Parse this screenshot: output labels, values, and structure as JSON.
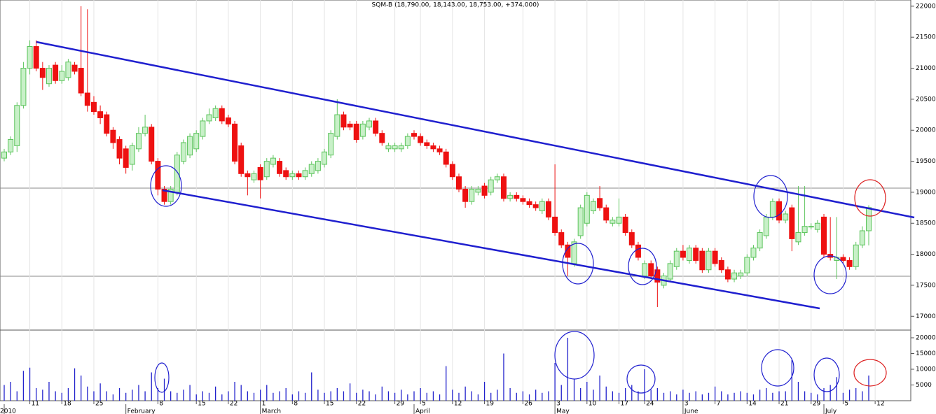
{
  "chart_data": {
    "type": "candlestick",
    "title": "SQM-B (18,790.00, 18,143.00, 18,753.00, +374.000)",
    "candles": [
      [
        19550,
        19700,
        19500,
        19650
      ],
      [
        19650,
        19900,
        19600,
        19850
      ],
      [
        19750,
        20450,
        19650,
        20400
      ],
      [
        20400,
        21100,
        20350,
        21000
      ],
      [
        21000,
        21450,
        20900,
        21350
      ],
      [
        21350,
        21450,
        20950,
        21000
      ],
      [
        21000,
        21100,
        20650,
        20850
      ],
      [
        20750,
        21050,
        20700,
        21000
      ],
      [
        21050,
        21100,
        20750,
        20800
      ],
      [
        20800,
        21050,
        20750,
        20950
      ],
      [
        20850,
        21150,
        20800,
        21100
      ],
      [
        21050,
        21100,
        20900,
        20950
      ],
      [
        21000,
        22000,
        20550,
        20600
      ],
      [
        20600,
        21950,
        20300,
        20400
      ],
      [
        20450,
        20550,
        20250,
        20300
      ],
      [
        20300,
        20400,
        20100,
        20200
      ],
      [
        20250,
        20300,
        19900,
        19950
      ],
      [
        20000,
        20050,
        19700,
        19800
      ],
      [
        19850,
        19900,
        19450,
        19550
      ],
      [
        19700,
        19750,
        19300,
        19400
      ],
      [
        19450,
        19800,
        19350,
        19750
      ],
      [
        19700,
        20050,
        19650,
        19950
      ],
      [
        19950,
        20250,
        19900,
        20050
      ],
      [
        20050,
        20100,
        19450,
        19500
      ],
      [
        19500,
        19550,
        18950,
        19050
      ],
      [
        19050,
        19100,
        18800,
        18850
      ],
      [
        18850,
        19100,
        18800,
        19050
      ],
      [
        19000,
        19650,
        18950,
        19600
      ],
      [
        19500,
        19850,
        19450,
        19800
      ],
      [
        19600,
        19950,
        19550,
        19900
      ],
      [
        19700,
        20000,
        19650,
        19950
      ],
      [
        19900,
        20200,
        19850,
        20150
      ],
      [
        20150,
        20350,
        20100,
        20250
      ],
      [
        20200,
        20400,
        20150,
        20350
      ],
      [
        20350,
        20400,
        20100,
        20150
      ],
      [
        20200,
        20250,
        20050,
        20100
      ],
      [
        20100,
        20150,
        19450,
        19500
      ],
      [
        19750,
        19800,
        19250,
        19300
      ],
      [
        19300,
        19350,
        18950,
        19250
      ],
      [
        19200,
        19350,
        19150,
        19300
      ],
      [
        19400,
        19450,
        18900,
        19200
      ],
      [
        19250,
        19550,
        19200,
        19500
      ],
      [
        19450,
        19600,
        19400,
        19550
      ],
      [
        19500,
        19550,
        19250,
        19300
      ],
      [
        19350,
        19400,
        19200,
        19250
      ],
      [
        19250,
        19350,
        19200,
        19300
      ],
      [
        19300,
        19350,
        19200,
        19250
      ],
      [
        19250,
        19400,
        19200,
        19350
      ],
      [
        19300,
        19500,
        19250,
        19450
      ],
      [
        19350,
        19550,
        19300,
        19500
      ],
      [
        19450,
        19700,
        19400,
        19650
      ],
      [
        19600,
        20000,
        19550,
        19950
      ],
      [
        19900,
        20500,
        19850,
        20250
      ],
      [
        20250,
        20300,
        20000,
        20050
      ],
      [
        20100,
        20150,
        20000,
        20050
      ],
      [
        20100,
        20150,
        19800,
        19850
      ],
      [
        19900,
        20150,
        19850,
        20100
      ],
      [
        20050,
        20200,
        20000,
        20150
      ],
      [
        20150,
        20200,
        19900,
        19950
      ],
      [
        19950,
        20000,
        19750,
        19800
      ],
      [
        19700,
        19800,
        19650,
        19750
      ],
      [
        19700,
        19800,
        19650,
        19750
      ],
      [
        19700,
        19800,
        19650,
        19750
      ],
      [
        19750,
        19950,
        19700,
        19900
      ],
      [
        19950,
        20000,
        19850,
        19900
      ],
      [
        19900,
        19950,
        19750,
        19800
      ],
      [
        19800,
        19850,
        19700,
        19750
      ],
      [
        19750,
        19800,
        19650,
        19700
      ],
      [
        19700,
        19750,
        19600,
        19650
      ],
      [
        19650,
        19700,
        19400,
        19450
      ],
      [
        19450,
        19500,
        19200,
        19250
      ],
      [
        19250,
        19300,
        19000,
        19050
      ],
      [
        19050,
        19100,
        18750,
        18850
      ],
      [
        18850,
        19100,
        18800,
        19050
      ],
      [
        19000,
        19100,
        18950,
        19050
      ],
      [
        19100,
        19150,
        18900,
        18950
      ],
      [
        19000,
        19250,
        18950,
        19200
      ],
      [
        19200,
        19300,
        19150,
        19250
      ],
      [
        19250,
        19300,
        18850,
        18900
      ],
      [
        18900,
        19000,
        18850,
        18950
      ],
      [
        18950,
        19000,
        18850,
        18900
      ],
      [
        18900,
        18950,
        18800,
        18850
      ],
      [
        18850,
        18900,
        18750,
        18800
      ],
      [
        18800,
        18850,
        18700,
        18750
      ],
      [
        18700,
        18900,
        18650,
        18850
      ],
      [
        18850,
        18900,
        18550,
        18600
      ],
      [
        18600,
        19450,
        18300,
        18350
      ],
      [
        18350,
        18400,
        18100,
        18150
      ],
      [
        18150,
        18200,
        17650,
        17950
      ],
      [
        17850,
        18250,
        17800,
        18200
      ],
      [
        18300,
        18800,
        18250,
        18750
      ],
      [
        18500,
        19000,
        18450,
        18950
      ],
      [
        18700,
        18900,
        18650,
        18850
      ],
      [
        18900,
        19100,
        18700,
        18750
      ],
      [
        18750,
        18800,
        18500,
        18550
      ],
      [
        18500,
        18600,
        18450,
        18550
      ],
      [
        18500,
        18900,
        18450,
        18600
      ],
      [
        18600,
        18650,
        18300,
        18350
      ],
      [
        18350,
        18400,
        18100,
        18150
      ],
      [
        18150,
        18200,
        17900,
        17950
      ],
      [
        17650,
        17900,
        17600,
        17850
      ],
      [
        17850,
        17900,
        17600,
        17650
      ],
      [
        17750,
        17800,
        17150,
        17550
      ],
      [
        17500,
        17700,
        17450,
        17650
      ],
      [
        17600,
        17900,
        17550,
        17850
      ],
      [
        17800,
        18100,
        17750,
        18050
      ],
      [
        18050,
        18150,
        17900,
        17950
      ],
      [
        17900,
        18150,
        17850,
        18100
      ],
      [
        18100,
        18150,
        17850,
        17900
      ],
      [
        18050,
        18100,
        17700,
        17750
      ],
      [
        17750,
        18100,
        17700,
        18050
      ],
      [
        18050,
        18100,
        17800,
        17850
      ],
      [
        17900,
        17950,
        17700,
        17750
      ],
      [
        17750,
        17800,
        17550,
        17600
      ],
      [
        17600,
        17750,
        17550,
        17700
      ],
      [
        17650,
        17750,
        17600,
        17700
      ],
      [
        17700,
        18000,
        17650,
        17950
      ],
      [
        17950,
        18150,
        17900,
        18100
      ],
      [
        18100,
        18400,
        18050,
        18350
      ],
      [
        18300,
        18650,
        18250,
        18600
      ],
      [
        18600,
        18900,
        18550,
        18850
      ],
      [
        18850,
        18900,
        18500,
        18550
      ],
      [
        18550,
        18700,
        18500,
        18650
      ],
      [
        18750,
        18800,
        18050,
        18250
      ],
      [
        18200,
        19100,
        18150,
        18350
      ],
      [
        18350,
        19100,
        18300,
        18450
      ],
      [
        18450,
        18500,
        18400,
        18450
      ],
      [
        18400,
        18550,
        18350,
        18500
      ],
      [
        18600,
        18650,
        17950,
        18000
      ],
      [
        18000,
        18600,
        17900,
        17950
      ],
      [
        17900,
        18600,
        17600,
        17950
      ],
      [
        17950,
        18000,
        17850,
        17900
      ],
      [
        17900,
        17950,
        17750,
        17800
      ],
      [
        17800,
        18200,
        17750,
        18150
      ],
      [
        18150,
        18450,
        18100,
        18379
      ],
      [
        18379,
        18790,
        18143,
        18753
      ]
    ],
    "volume": [
      5000,
      6000,
      3000,
      9500,
      10500,
      4000,
      3500,
      6000,
      3000,
      2500,
      4000,
      10300,
      8000,
      4500,
      3000,
      5500,
      3000,
      2000,
      4000,
      2500,
      3500,
      5000,
      3000,
      9000,
      4000,
      7000,
      3000,
      2500,
      3500,
      5000,
      2000,
      3000,
      2500,
      4500,
      2000,
      3000,
      6000,
      5000,
      3000,
      2500,
      3500,
      5000,
      2500,
      3000,
      4000,
      2000,
      3000,
      2500,
      9000,
      3500,
      2500,
      3000,
      4000,
      3000,
      5500,
      2500,
      3500,
      3000,
      2000,
      4500,
      3000,
      2500,
      3500,
      2000,
      3000,
      4000,
      2500,
      3000,
      2000,
      11000,
      3500,
      2500,
      4500,
      3000,
      2000,
      6000,
      2500,
      3500,
      15000,
      4000,
      2500,
      3000,
      2000,
      3500,
      2500,
      3000,
      12000,
      5000,
      20000,
      7000,
      4000,
      6000,
      3500,
      8000,
      4500,
      3000,
      2500,
      4000,
      5000,
      3000,
      10000,
      3500,
      4000,
      2500,
      3000,
      2000,
      3500,
      2500,
      3000,
      2000,
      2500,
      4500,
      3000,
      2000,
      2500,
      3000,
      2500,
      2000,
      3500,
      4000,
      2500,
      3000,
      3000,
      13000,
      6000,
      3000,
      2500,
      2000,
      4000,
      5000,
      7500,
      2500,
      3500,
      4000,
      3000,
      8000
    ],
    "ylim": [
      16800,
      22100
    ],
    "yticks": [
      17000,
      17500,
      18000,
      18500,
      19000,
      19500,
      20000,
      20500,
      21000,
      21500,
      22000
    ],
    "volume_ylim": [
      0,
      22000
    ],
    "volume_yticks": [
      5000,
      10000,
      15000,
      20000
    ],
    "xticks": [
      {
        "value": 4,
        "label": "11"
      },
      {
        "value": 9,
        "label": "18"
      },
      {
        "value": 14,
        "label": "25"
      },
      {
        "value": 24,
        "label": "8"
      },
      {
        "value": 30,
        "label": "15"
      },
      {
        "value": 35,
        "label": "22"
      },
      {
        "value": 40,
        "label": "1"
      },
      {
        "value": 45,
        "label": "8"
      },
      {
        "value": 50,
        "label": "15"
      },
      {
        "value": 55,
        "label": "22"
      },
      {
        "value": 61,
        "label": "29"
      },
      {
        "value": 65,
        "label": "5"
      },
      {
        "value": 70,
        "label": "12"
      },
      {
        "value": 75,
        "label": "19"
      },
      {
        "value": 81,
        "label": "26"
      },
      {
        "value": 86,
        "label": "3"
      },
      {
        "value": 91,
        "label": "10"
      },
      {
        "value": 96,
        "label": "17"
      },
      {
        "value": 100,
        "label": "24"
      },
      {
        "value": 106,
        "label": "3"
      },
      {
        "value": 111,
        "label": "7"
      },
      {
        "value": 116,
        "label": "14"
      },
      {
        "value": 121,
        "label": "21"
      },
      {
        "value": 126,
        "label": "29"
      },
      {
        "value": 131,
        "label": "5"
      },
      {
        "value": 136,
        "label": "12"
      }
    ],
    "month_ticks": [
      {
        "value": 0,
        "label": "2010"
      },
      {
        "value": 19,
        "label": "February"
      },
      {
        "value": 40,
        "label": "March"
      },
      {
        "value": 64,
        "label": "April"
      },
      {
        "value": 86,
        "label": "May"
      },
      {
        "value": 106,
        "label": "June"
      },
      {
        "value": 128,
        "label": "July"
      }
    ],
    "up_color": "#5cc45c",
    "down_color": "#ee1111",
    "volume_color": "#2222cc"
  }
}
